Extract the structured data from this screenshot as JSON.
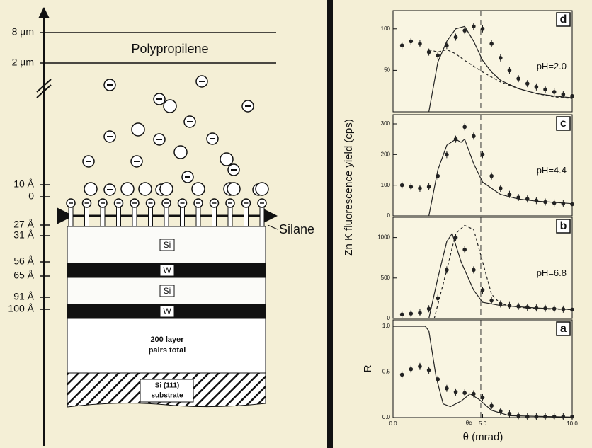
{
  "diagram": {
    "depth_labels": [
      "8 µm",
      "2 µm",
      "10 Å",
      "0",
      "27 Å",
      "31 Å",
      "56 Å",
      "65 Å",
      "91 Å",
      "100 Å"
    ],
    "top_label": "Polypropilene",
    "side_label": "Silane",
    "layers": [
      "Si",
      "W",
      "Si",
      "W"
    ],
    "bulk_label": [
      "200 layer",
      "pairs total"
    ],
    "substrate_label": [
      "Si (111)",
      "substrate"
    ]
  },
  "figure": {
    "ylabel": "Zn K  fluorescence yield (cps)",
    "xlabel": "θ (mrad)",
    "critical_label": "θc"
  },
  "chart_data": [
    {
      "type": "scatter-line",
      "panel": "d",
      "annotation": "pH=2.0",
      "xlim": [
        0,
        10
      ],
      "ylim": [
        0,
        122
      ],
      "yticks": [
        50,
        100
      ],
      "vline_x": 4.9,
      "series": [
        {
          "style": "points",
          "color": "#222222",
          "x": [
            0.5,
            1,
            1.5,
            2,
            2.5,
            3,
            3.5,
            4,
            4.5,
            5,
            5.5,
            6,
            6.5,
            7,
            7.5,
            8,
            8.5,
            9,
            9.5,
            10
          ],
          "values": [
            80,
            85,
            82,
            72,
            68,
            80,
            90,
            98,
            103,
            100,
            82,
            65,
            50,
            40,
            34,
            30,
            27,
            24,
            21,
            19
          ]
        },
        {
          "style": "solid",
          "color": "#222222",
          "x": [
            2,
            2.5,
            3,
            3.5,
            4,
            4.5,
            5,
            5.5,
            6,
            7,
            8,
            9,
            10
          ],
          "values": [
            0,
            60,
            85,
            100,
            103,
            85,
            62,
            48,
            38,
            28,
            22,
            19,
            17
          ]
        },
        {
          "style": "dashed",
          "color": "#222222",
          "x": [
            2,
            2.5,
            3,
            3.5,
            4,
            4.5,
            5,
            5.5,
            6,
            7,
            8,
            9,
            10
          ],
          "values": [
            75,
            72,
            75,
            70,
            62,
            55,
            48,
            42,
            36,
            28,
            22,
            18,
            16
          ]
        }
      ]
    },
    {
      "type": "scatter-line",
      "panel": "c",
      "annotation": "pH=4.4",
      "xlim": [
        0,
        10
      ],
      "ylim": [
        0,
        330
      ],
      "yticks": [
        0,
        100,
        200,
        300
      ],
      "vline_x": 4.9,
      "series": [
        {
          "style": "points",
          "color": "#222222",
          "x": [
            0.5,
            1,
            1.5,
            2,
            2.5,
            3,
            3.5,
            4,
            4.5,
            5,
            5.5,
            6,
            6.5,
            7,
            7.5,
            8,
            8.5,
            9,
            9.5,
            10
          ],
          "values": [
            100,
            95,
            90,
            95,
            130,
            200,
            250,
            290,
            260,
            200,
            130,
            90,
            70,
            60,
            55,
            50,
            45,
            42,
            40,
            38
          ]
        },
        {
          "style": "solid",
          "color": "#222222",
          "x": [
            2,
            2.5,
            3,
            3.5,
            3.8,
            4,
            4.5,
            5,
            6,
            7,
            8,
            10
          ],
          "values": [
            0,
            150,
            230,
            250,
            240,
            250,
            170,
            110,
            70,
            55,
            48,
            40
          ]
        }
      ]
    },
    {
      "type": "scatter-line",
      "panel": "b",
      "annotation": "pH=6.8",
      "xlim": [
        0,
        10
      ],
      "ylim": [
        0,
        1250
      ],
      "yticks": [
        0,
        500,
        1000
      ],
      "vline_x": 4.9,
      "series": [
        {
          "style": "points",
          "color": "#222222",
          "x": [
            0.5,
            1,
            1.5,
            2,
            2.5,
            3,
            3.5,
            4,
            4.5,
            5,
            5.5,
            6,
            6.5,
            7,
            7.5,
            8,
            8.5,
            9,
            9.5,
            10
          ],
          "values": [
            50,
            60,
            70,
            120,
            250,
            600,
            1000,
            850,
            600,
            350,
            220,
            180,
            160,
            150,
            140,
            130,
            125,
            120,
            115,
            110
          ]
        },
        {
          "style": "solid",
          "color": "#222222",
          "x": [
            2,
            2.5,
            3,
            3.3,
            3.8,
            4.5,
            5,
            6,
            8,
            10
          ],
          "values": [
            0,
            500,
            950,
            1050,
            700,
            350,
            200,
            160,
            130,
            110
          ]
        },
        {
          "style": "dashed",
          "color": "#222222",
          "x": [
            2.3,
            3,
            3.5,
            4,
            4.5,
            5,
            5.5,
            6,
            7,
            8,
            10
          ],
          "values": [
            0,
            600,
            1050,
            1150,
            1100,
            700,
            300,
            180,
            140,
            120,
            110
          ]
        }
      ]
    },
    {
      "type": "scatter-line",
      "panel": "a",
      "ylabel": "R",
      "xlim": [
        0,
        10
      ],
      "ylim": [
        0,
        1.07
      ],
      "vline_x": 4.9,
      "yticks": [
        {
          "value": 0,
          "label": "0.0"
        },
        {
          "value": 0.5,
          "label": "0.5"
        },
        {
          "value": 1,
          "label": "1.0"
        }
      ],
      "xticks": [
        {
          "value": 0,
          "label": "0.0"
        },
        {
          "value": 5,
          "label": "5.0"
        },
        {
          "value": 10,
          "label": "10.0"
        }
      ],
      "series": [
        {
          "style": "points",
          "color": "#222222",
          "x": [
            0.5,
            1,
            1.5,
            2,
            2.5,
            3,
            3.5,
            4,
            4.5,
            5,
            5.5,
            6,
            6.5,
            7,
            7.5,
            8,
            8.5,
            9,
            9.5,
            10
          ],
          "values": [
            0.47,
            0.53,
            0.56,
            0.52,
            0.42,
            0.32,
            0.28,
            0.27,
            0.26,
            0.22,
            0.13,
            0.07,
            0.04,
            0.02,
            0.01,
            0.01,
            0.01,
            0.01,
            0.01,
            0.01
          ]
        },
        {
          "style": "solid",
          "color": "#222222",
          "x": [
            0,
            1.8,
            2,
            2.4,
            2.8,
            3.2,
            3.8,
            4.3,
            4.8,
            5.5,
            6.5,
            10
          ],
          "values": [
            1,
            1,
            0.95,
            0.45,
            0.15,
            0.12,
            0.18,
            0.26,
            0.2,
            0.08,
            0.02,
            0.005
          ]
        }
      ]
    }
  ]
}
